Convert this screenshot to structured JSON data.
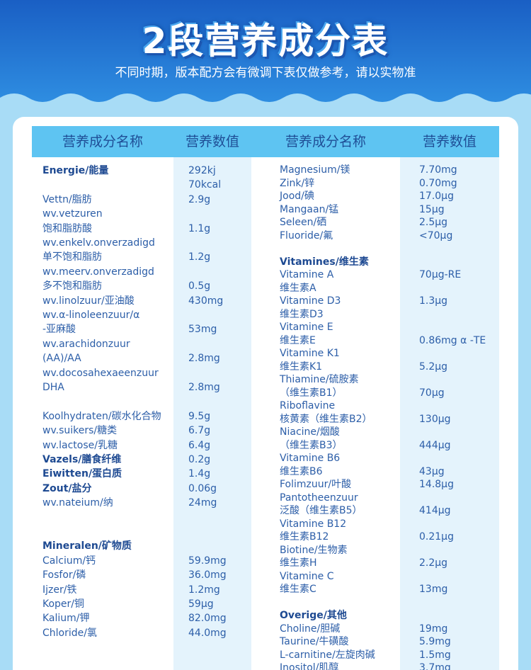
{
  "header": {
    "title": "2段营养成分表",
    "subtitle": "不同时期，版本配方会有微调下表仅做参考，请以实物准"
  },
  "table": {
    "columns": [
      "营养成分名称",
      "营养数值",
      "营养成分名称",
      "营养数值"
    ],
    "left": {
      "names": [
        "Energie/能量",
        "Vettn/脂肪",
        "wv.vetzuren",
        "饱和脂肪酸",
        "wv.enkelv.onverzadigd",
        "单不饱和脂肪",
        "wv.meerv.onverzadigd",
        "多不饱和脂肪",
        "wv.linolzuur/亚油酸",
        "wv.α-linoleenzuur/α",
        "-亚麻酸",
        "wv.arachidonzuur",
        "(AA)/AA",
        "wv.docosahexaeenzuur",
        "DHA",
        "Koolhydraten/碳水化合物",
        "wv.suikers/糖类",
        "wv.lactose/乳糖",
        "Vazels/膳食纤维",
        "Eiwitten/蛋白质",
        "Zout/盐分",
        "wv.nateium/纳",
        "Mineralen/矿物质",
        "Calcium/钙",
        "Fosfor/磷",
        "Ijzer/铁",
        "Koper/铜",
        "Kalium/钾",
        "Chloride/氯"
      ],
      "values": [
        "292kj",
        "70kcal",
        "2.9g",
        "1.1g",
        "1.2g",
        "0.5g",
        "430mg",
        "53mg",
        "2.8mg",
        "2.8mg",
        "9.5g",
        "6.7g",
        "6.4g",
        "0.2g",
        "1.4g",
        "0.06g",
        "24mg",
        "59.9mg",
        "36.0mg",
        "1.2mg",
        "59μg",
        "82.0mg",
        "44.0mg"
      ]
    },
    "right": {
      "names": [
        "Magnesium/镁",
        "Zink/锌",
        "Jood/碘",
        "Mangaan/锰",
        "Seleen/硒",
        "Fluoride/氟",
        "Vitamines/维生素",
        "Vitamine A",
        "维生素A",
        "Vitamine D3",
        "维生素D3",
        "Vitamine E",
        "维生素E",
        "Vitamine K1",
        "维生素K1",
        "Thiamine/硫胺素",
        "（维生素B1）",
        "Riboflavine",
        "核黄素（维生素B2）",
        "Niacine/烟酸",
        "（维生素B3）",
        "Vitamine B6",
        "维生素B6",
        "Folimzuur/叶酸",
        "Pantotheenzuur",
        "泛酸（维生素B5）",
        "Vitamine B12",
        "维生素B12",
        "Biotine/生物素",
        "维生素H",
        "Vitamine C",
        "维生素C",
        "Overige/其他",
        "Choline/胆碱",
        "Taurine/牛磺酸",
        "L-carnitine/左旋肉碱",
        "Inositol/肌醇"
      ],
      "values": [
        "7.70mg",
        "0.70mg",
        "17.0μg",
        "15μg",
        "2.5μg",
        "<70μg",
        "70μg-RE",
        "1.3μg",
        "0.86mg α -TE",
        "5.2μg",
        "70μg",
        "130μg",
        "444μg",
        "43μg",
        "14.8μg",
        "414μg",
        "0.21μg",
        "2.2μg",
        "13mg",
        "19mg",
        "5.9mg",
        "1.5mg",
        "3.7mg"
      ]
    }
  }
}
